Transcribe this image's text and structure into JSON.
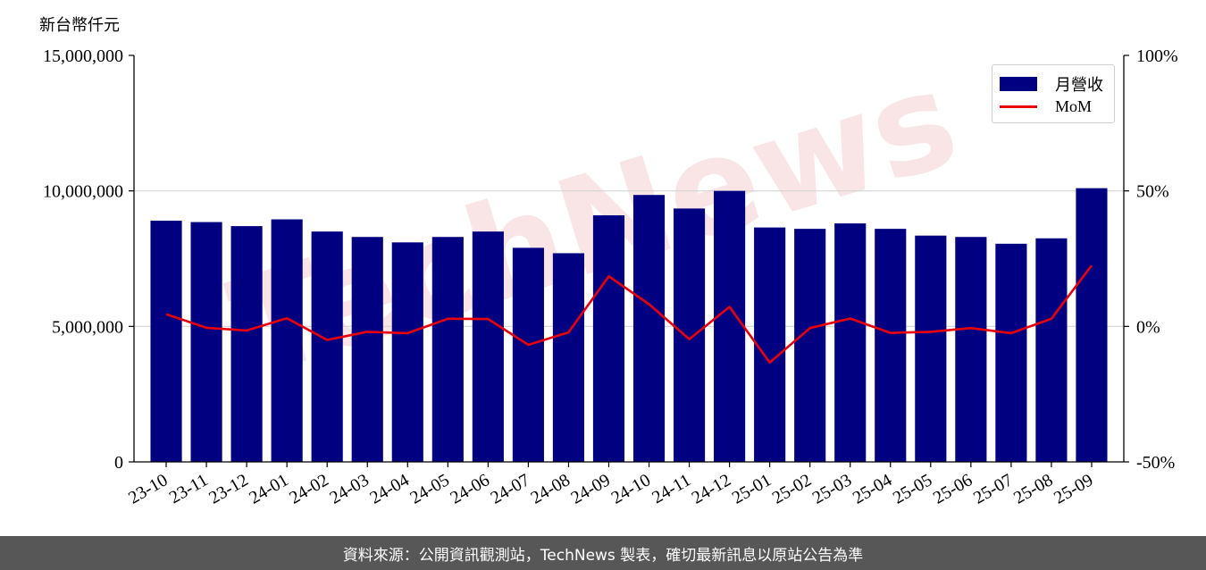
{
  "unit_label": "新台幣仟元",
  "footer_text": "資料來源：公開資訊觀測站，TechNews 製表，確切最新訊息以原站公告為準",
  "watermark_text": "TechNews",
  "colors": {
    "bar": "#000080",
    "line": "#e8000b",
    "footer_bg": "#575757",
    "watermark": "#f2c7c7"
  },
  "chart_data": {
    "type": "bar",
    "categories": [
      "23-10",
      "23-11",
      "23-12",
      "24-01",
      "24-02",
      "24-03",
      "24-04",
      "24-05",
      "24-06",
      "24-07",
      "24-08",
      "24-09",
      "24-10",
      "24-11",
      "24-12",
      "25-01",
      "25-02",
      "25-03",
      "25-04",
      "25-05",
      "25-06",
      "25-07",
      "25-08",
      "25-09"
    ],
    "series": [
      {
        "name": "月營收",
        "type": "bar",
        "axis": "left",
        "values": [
          8900000,
          8850000,
          8700000,
          8950000,
          8500000,
          8300000,
          8100000,
          8300000,
          8500000,
          7900000,
          7700000,
          9100000,
          9850000,
          9350000,
          10000000,
          8650000,
          8600000,
          8800000,
          8600000,
          8350000,
          8300000,
          8050000,
          8250000,
          10100000
        ]
      },
      {
        "name": "MoM",
        "type": "line",
        "axis": "right",
        "values": [
          4.5,
          -0.5,
          -1.5,
          3.0,
          -5.0,
          -2.0,
          -2.5,
          2.8,
          2.7,
          -6.8,
          -2.2,
          18.5,
          8.2,
          -4.7,
          7.2,
          -13.3,
          -0.6,
          2.9,
          -2.4,
          -2.0,
          -0.6,
          -2.5,
          2.8,
          22.5
        ]
      }
    ],
    "y_left": {
      "ylim": [
        0,
        15000000
      ],
      "ticks": [
        "0",
        "5,000,000",
        "10,000,000",
        "15,000,000"
      ],
      "tick_values": [
        0,
        5000000,
        10000000,
        15000000
      ]
    },
    "y_right": {
      "ylim": [
        -50,
        100
      ],
      "ticks": [
        "-50%",
        "0%",
        "50%",
        "100%"
      ],
      "tick_values": [
        -50,
        0,
        50,
        100
      ]
    },
    "grid": "horizontal",
    "legend_position": "top-right"
  }
}
